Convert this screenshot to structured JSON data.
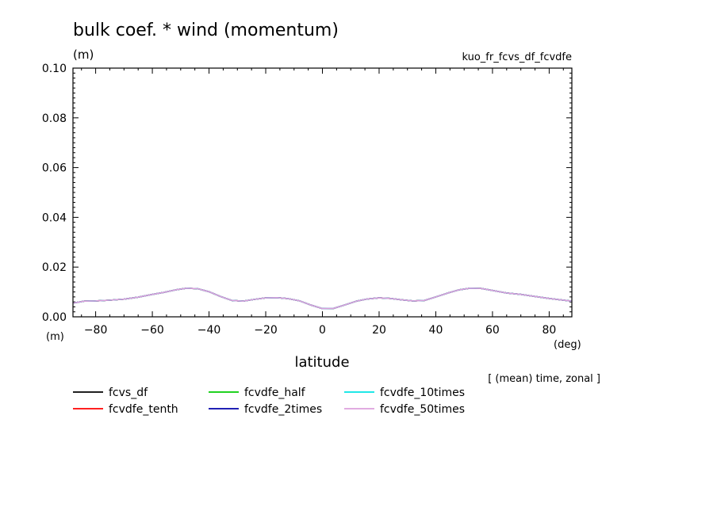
{
  "chart_data": {
    "type": "line",
    "title": "bulk coef. * wind (momentum)",
    "y_unit": "(m)",
    "x_unit_left": "(m)",
    "x_unit_right": "(deg)",
    "experiment": "kuo_fr_fcvs_df_fcvdfe",
    "xlabel": "latitude",
    "note": "[ (mean) time, zonal ]",
    "xlim": [
      -88,
      88
    ],
    "ylim": [
      0,
      0.1
    ],
    "x_ticks": [
      -80,
      -60,
      -40,
      -20,
      0,
      20,
      40,
      60,
      80
    ],
    "x_tick_labels": [
      "−80",
      "−60",
      "−40",
      "−20",
      "0",
      "20",
      "40",
      "60",
      "80"
    ],
    "y_ticks": [
      0,
      0.02,
      0.04,
      0.06,
      0.08,
      0.1
    ],
    "y_tick_labels": [
      "0.00",
      "0.02",
      "0.04",
      "0.06",
      "0.08",
      "0.10"
    ],
    "x": [
      -88,
      -84,
      -80,
      -75,
      -70,
      -65,
      -60,
      -56,
      -52,
      -48,
      -44,
      -40,
      -36,
      -32,
      -28,
      -24,
      -20,
      -16,
      -12,
      -8,
      -4,
      0,
      4,
      8,
      12,
      16,
      20,
      24,
      28,
      32,
      36,
      40,
      44,
      48,
      52,
      56,
      60,
      65,
      70,
      75,
      80,
      84,
      88
    ],
    "series": [
      {
        "name": "fcvs_df",
        "color": "#000000",
        "values": [
          0.0055,
          0.0063,
          0.0064,
          0.0067,
          0.0071,
          0.0079,
          0.009,
          0.0098,
          0.0108,
          0.0115,
          0.0113,
          0.0101,
          0.0082,
          0.0066,
          0.0063,
          0.007,
          0.0076,
          0.0077,
          0.0073,
          0.0064,
          0.0047,
          0.0033,
          0.0034,
          0.0048,
          0.0063,
          0.0072,
          0.0076,
          0.0074,
          0.0068,
          0.0064,
          0.0066,
          0.008,
          0.0095,
          0.0108,
          0.0115,
          0.0114,
          0.0106,
          0.0096,
          0.009,
          0.0082,
          0.0074,
          0.0068,
          0.0063
        ]
      },
      {
        "name": "fcvdfe_tenth",
        "color": "#ff0000",
        "values": [
          0.0055,
          0.0063,
          0.0064,
          0.0067,
          0.0071,
          0.0079,
          0.009,
          0.0098,
          0.0108,
          0.0115,
          0.0113,
          0.0101,
          0.0082,
          0.0066,
          0.0063,
          0.007,
          0.0076,
          0.0077,
          0.0073,
          0.0064,
          0.0047,
          0.0033,
          0.0034,
          0.0048,
          0.0063,
          0.0072,
          0.0076,
          0.0074,
          0.0068,
          0.0064,
          0.0066,
          0.008,
          0.0095,
          0.0108,
          0.0115,
          0.0114,
          0.0106,
          0.0096,
          0.009,
          0.0082,
          0.0074,
          0.0068,
          0.0063
        ]
      },
      {
        "name": "fcvdfe_half",
        "color": "#00cc00",
        "values": [
          0.0055,
          0.0063,
          0.0064,
          0.0067,
          0.0071,
          0.0079,
          0.009,
          0.0098,
          0.0108,
          0.0115,
          0.0113,
          0.0101,
          0.0082,
          0.0066,
          0.0063,
          0.007,
          0.0076,
          0.0077,
          0.0073,
          0.0064,
          0.0047,
          0.0033,
          0.0034,
          0.0048,
          0.0063,
          0.0072,
          0.0076,
          0.0074,
          0.0068,
          0.0064,
          0.0066,
          0.008,
          0.0095,
          0.0108,
          0.0115,
          0.0114,
          0.0106,
          0.0096,
          0.009,
          0.0082,
          0.0074,
          0.0068,
          0.0063
        ]
      },
      {
        "name": "fcvdfe_2times",
        "color": "#0000aa",
        "values": [
          0.0055,
          0.0063,
          0.0064,
          0.0067,
          0.0071,
          0.0079,
          0.009,
          0.0098,
          0.0108,
          0.0115,
          0.0113,
          0.0101,
          0.0082,
          0.0066,
          0.0063,
          0.007,
          0.0076,
          0.0077,
          0.0073,
          0.0064,
          0.0047,
          0.0033,
          0.0034,
          0.0048,
          0.0063,
          0.0072,
          0.0076,
          0.0074,
          0.0068,
          0.0064,
          0.0066,
          0.008,
          0.0095,
          0.0108,
          0.0115,
          0.0114,
          0.0106,
          0.0096,
          0.009,
          0.0082,
          0.0074,
          0.0068,
          0.0063
        ]
      },
      {
        "name": "fcvdfe_10times",
        "color": "#00e5e5",
        "values": [
          0.0055,
          0.0063,
          0.0064,
          0.0067,
          0.0071,
          0.0079,
          0.009,
          0.0098,
          0.0108,
          0.0115,
          0.0113,
          0.0101,
          0.0082,
          0.0066,
          0.0063,
          0.007,
          0.0076,
          0.0077,
          0.0073,
          0.0064,
          0.0047,
          0.0033,
          0.0034,
          0.0048,
          0.0063,
          0.0072,
          0.0076,
          0.0074,
          0.0068,
          0.0064,
          0.0066,
          0.008,
          0.0095,
          0.0108,
          0.0115,
          0.0114,
          0.0106,
          0.0096,
          0.009,
          0.0082,
          0.0074,
          0.0068,
          0.0063
        ]
      },
      {
        "name": "fcvdfe_50times",
        "color": "#dda0dd",
        "values": [
          0.0055,
          0.0063,
          0.0064,
          0.0067,
          0.0071,
          0.0079,
          0.009,
          0.0098,
          0.0108,
          0.0115,
          0.0113,
          0.0101,
          0.0082,
          0.0066,
          0.0063,
          0.007,
          0.0076,
          0.0077,
          0.0073,
          0.0064,
          0.0047,
          0.0033,
          0.0034,
          0.0048,
          0.0063,
          0.0072,
          0.0076,
          0.0074,
          0.0068,
          0.0064,
          0.0066,
          0.008,
          0.0095,
          0.0108,
          0.0115,
          0.0114,
          0.0106,
          0.0096,
          0.009,
          0.0082,
          0.0074,
          0.0068,
          0.0063
        ]
      }
    ],
    "legend_order": [
      [
        "fcvs_df",
        "fcvdfe_half",
        "fcvdfe_10times"
      ],
      [
        "fcvdfe_tenth",
        "fcvdfe_2times",
        "fcvdfe_50times"
      ]
    ]
  }
}
